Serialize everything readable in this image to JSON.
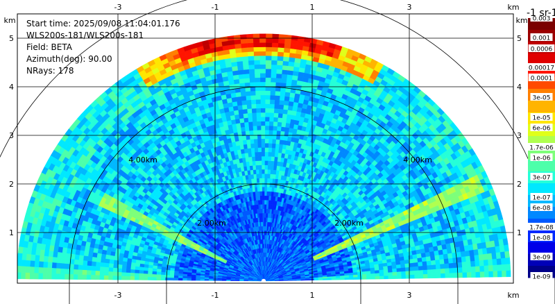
{
  "info": {
    "start_time": "Start time: 2025/09/08 11:04:01.176",
    "instrument": "WLS200s-181/WLS200s-181",
    "field": "Field: BETA",
    "azimuth": "Azimuth(deg): 90.00",
    "nrays": "NRays: 178"
  },
  "colorbar": {
    "unit_label": "-1 sr-1",
    "labels": [
      "0.003",
      "0.001",
      "0.0006",
      "0.00017",
      "0.0001",
      "3e-05",
      "1e-05",
      "6e-06",
      "1.7e-06",
      "1e-06",
      "3e-07",
      "1e-07",
      "6e-08",
      "1.7e-08",
      "1e-08",
      "3e-09",
      "1e-09"
    ],
    "colors": [
      "#7a0000",
      "#9c0000",
      "#be0000",
      "#e00000",
      "#ff1400",
      "#ff4a00",
      "#ff8000",
      "#ffb400",
      "#ffe600",
      "#e0ff1a",
      "#b0ff50",
      "#7dff7a",
      "#4dffaa",
      "#25ffd8",
      "#00e8ff",
      "#00b8ff",
      "#0088ff",
      "#0058ff",
      "#0028ff",
      "#0000e8",
      "#0000b8",
      "#000088"
    ]
  },
  "chart_data": {
    "type": "heatmap",
    "projection": "RHI polar scan",
    "x_unit": "km",
    "y_unit": "km",
    "x_ticks": [
      -3,
      -1,
      1,
      3
    ],
    "y_ticks": [
      1,
      2,
      3,
      4,
      5
    ],
    "xlim": [
      -5.0,
      5.0
    ],
    "ylim": [
      0,
      5.5
    ],
    "range_ring_labels": [
      "2.00km",
      "4.00km"
    ],
    "range_rings_km": [
      2,
      4,
      6
    ],
    "max_range_km": 5.0,
    "features": [
      {
        "description": "cloud layer",
        "range_km": [
          4.6,
          5.2
        ],
        "elevation_deg": [
          62,
          118
        ],
        "level": "1e-05"
      },
      {
        "description": "aerosol streak right",
        "range_km": [
          1.2,
          4.8
        ],
        "elevation_deg": [
          22,
          26
        ],
        "level": "1e-07"
      },
      {
        "description": "aerosol streak left",
        "range_km": [
          0.8,
          3.6
        ],
        "elevation_deg": [
          151,
          155
        ],
        "level": "1e-07"
      }
    ]
  }
}
